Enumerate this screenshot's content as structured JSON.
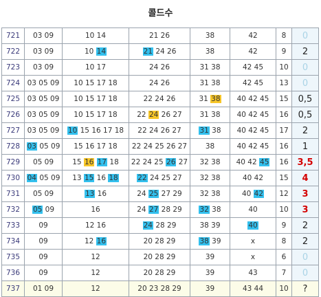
{
  "title": "콜드수",
  "rows": [
    {
      "n": "721",
      "c": [
        [
          [
            "03 09",
            ""
          ]
        ],
        [
          [
            "10 14",
            ""
          ]
        ],
        [
          [
            "21 26",
            ""
          ]
        ],
        [
          [
            "38",
            ""
          ]
        ],
        [
          [
            "42",
            ""
          ]
        ],
        [
          [
            "8",
            ""
          ]
        ]
      ],
      "r": "0",
      "rs": "pale"
    },
    {
      "n": "722",
      "c": [
        [
          [
            "03 09",
            ""
          ]
        ],
        [
          [
            "10 ",
            ""
          ],
          [
            "14",
            "b"
          ]
        ],
        [
          [
            "21",
            "b"
          ],
          [
            " 24 26",
            ""
          ]
        ],
        [
          [
            "38",
            ""
          ]
        ],
        [
          [
            "42",
            ""
          ]
        ],
        [
          [
            "9",
            ""
          ]
        ]
      ],
      "r": "2",
      "rs": ""
    },
    {
      "n": "723",
      "c": [
        [
          [
            "03 09",
            ""
          ]
        ],
        [
          [
            "10 17",
            ""
          ]
        ],
        [
          [
            "24 26",
            ""
          ]
        ],
        [
          [
            "31 38",
            ""
          ]
        ],
        [
          [
            "42 45",
            ""
          ]
        ],
        [
          [
            "10",
            ""
          ]
        ]
      ],
      "r": "0",
      "rs": "pale"
    },
    {
      "n": "724",
      "c": [
        [
          [
            "03 05 09",
            ""
          ]
        ],
        [
          [
            "10 15 17 18",
            ""
          ]
        ],
        [
          [
            "24 26",
            ""
          ]
        ],
        [
          [
            "31 38",
            ""
          ]
        ],
        [
          [
            "42 45",
            ""
          ]
        ],
        [
          [
            "13",
            ""
          ]
        ]
      ],
      "r": "0",
      "rs": "pale"
    },
    {
      "n": "725",
      "c": [
        [
          [
            "03 05 09",
            ""
          ]
        ],
        [
          [
            "10 15 17 18",
            ""
          ]
        ],
        [
          [
            "22 24 26",
            ""
          ]
        ],
        [
          [
            "31 ",
            ""
          ],
          [
            "38",
            "y"
          ]
        ],
        [
          [
            "40 42 45",
            ""
          ]
        ],
        [
          [
            "15",
            ""
          ]
        ]
      ],
      "r": "0,5",
      "rs": ""
    },
    {
      "n": "726",
      "c": [
        [
          [
            "03 05 09",
            ""
          ]
        ],
        [
          [
            "10 15 17 18",
            ""
          ]
        ],
        [
          [
            "22 ",
            ""
          ],
          [
            "24",
            "y"
          ],
          [
            " 26 27",
            ""
          ]
        ],
        [
          [
            "31 38",
            ""
          ]
        ],
        [
          [
            "40 42 45",
            ""
          ]
        ],
        [
          [
            "16",
            ""
          ]
        ]
      ],
      "r": "0,5",
      "rs": ""
    },
    {
      "n": "727",
      "c": [
        [
          [
            "03 05 09",
            ""
          ]
        ],
        [
          [
            "10",
            "b"
          ],
          [
            " 15 16 17 18",
            ""
          ]
        ],
        [
          [
            "22 24 26 27",
            ""
          ]
        ],
        [
          [
            "31",
            "b"
          ],
          [
            " 38",
            ""
          ]
        ],
        [
          [
            "40 42 45",
            ""
          ]
        ],
        [
          [
            "17",
            ""
          ]
        ]
      ],
      "r": "2",
      "rs": ""
    },
    {
      "n": "728",
      "c": [
        [
          [
            "03",
            "b"
          ],
          [
            " 05 09",
            ""
          ]
        ],
        [
          [
            "15 16 17 18",
            ""
          ]
        ],
        [
          [
            "22 24 25 26 27",
            ""
          ]
        ],
        [
          [
            "38",
            ""
          ]
        ],
        [
          [
            "40 42 45",
            ""
          ]
        ],
        [
          [
            "16",
            ""
          ]
        ]
      ],
      "r": "1",
      "rs": ""
    },
    {
      "n": "729",
      "c": [
        [
          [
            "05 09",
            ""
          ]
        ],
        [
          [
            "15 ",
            ""
          ],
          [
            "16",
            "y"
          ],
          [
            " ",
            ""
          ],
          [
            "17",
            "b"
          ],
          [
            " 18",
            ""
          ]
        ],
        [
          [
            "22 24 25 ",
            ""
          ],
          [
            "26",
            "b"
          ],
          [
            " 27",
            ""
          ]
        ],
        [
          [
            "32 38",
            ""
          ]
        ],
        [
          [
            "40 42 ",
            ""
          ],
          [
            "45",
            "b"
          ]
        ],
        [
          [
            "16",
            ""
          ]
        ]
      ],
      "r": "3,5",
      "rs": "red"
    },
    {
      "n": "730",
      "c": [
        [
          [
            "04",
            "b"
          ],
          [
            " 05 09",
            ""
          ]
        ],
        [
          [
            "13 ",
            ""
          ],
          [
            "15",
            "b"
          ],
          [
            " 16 ",
            ""
          ],
          [
            "18",
            "b"
          ]
        ],
        [
          [
            "22",
            "b"
          ],
          [
            " 24 25 27",
            ""
          ]
        ],
        [
          [
            "32 38",
            ""
          ]
        ],
        [
          [
            "40 42",
            ""
          ]
        ],
        [
          [
            "15",
            ""
          ]
        ]
      ],
      "r": "4",
      "rs": "red"
    },
    {
      "n": "731",
      "c": [
        [
          [
            "05 09",
            ""
          ]
        ],
        [
          [
            "13",
            "b"
          ],
          [
            " 16",
            ""
          ]
        ],
        [
          [
            "24 ",
            ""
          ],
          [
            "25",
            "b"
          ],
          [
            " 27 29",
            ""
          ]
        ],
        [
          [
            "32 38",
            ""
          ]
        ],
        [
          [
            "40 ",
            ""
          ],
          [
            "42",
            "b"
          ]
        ],
        [
          [
            "12",
            ""
          ]
        ]
      ],
      "r": "3",
      "rs": "red"
    },
    {
      "n": "732",
      "c": [
        [
          [
            "05",
            "b"
          ],
          [
            " 09",
            ""
          ]
        ],
        [
          [
            "16",
            ""
          ]
        ],
        [
          [
            "24 ",
            ""
          ],
          [
            "27",
            "b"
          ],
          [
            " 28 29",
            ""
          ]
        ],
        [
          [
            "32",
            "b"
          ],
          [
            " 38",
            ""
          ]
        ],
        [
          [
            "40",
            ""
          ]
        ],
        [
          [
            "10",
            ""
          ]
        ]
      ],
      "r": "3",
      "rs": "red"
    },
    {
      "n": "733",
      "c": [
        [
          [
            "09",
            ""
          ]
        ],
        [
          [
            "12 16",
            ""
          ]
        ],
        [
          [
            "24",
            "b"
          ],
          [
            " 28 29",
            ""
          ]
        ],
        [
          [
            "38 39",
            ""
          ]
        ],
        [
          [
            "40",
            "b"
          ]
        ],
        [
          [
            "9",
            ""
          ]
        ]
      ],
      "r": "2",
      "rs": ""
    },
    {
      "n": "734",
      "c": [
        [
          [
            "09",
            ""
          ]
        ],
        [
          [
            "12 ",
            ""
          ],
          [
            "16",
            "b"
          ]
        ],
        [
          [
            "20 28 29",
            ""
          ]
        ],
        [
          [
            "38",
            "b"
          ],
          [
            " 39",
            ""
          ]
        ],
        [
          [
            "x",
            ""
          ]
        ],
        [
          [
            "8",
            ""
          ]
        ]
      ],
      "r": "2",
      "rs": ""
    },
    {
      "n": "735",
      "c": [
        [
          [
            "09",
            ""
          ]
        ],
        [
          [
            "12",
            ""
          ]
        ],
        [
          [
            "20 28 29",
            ""
          ]
        ],
        [
          [
            "39",
            ""
          ]
        ],
        [
          [
            "x",
            ""
          ]
        ],
        [
          [
            "6",
            ""
          ]
        ]
      ],
      "r": "0",
      "rs": "pale"
    },
    {
      "n": "736",
      "c": [
        [
          [
            "09",
            ""
          ]
        ],
        [
          [
            "12",
            ""
          ]
        ],
        [
          [
            "20 28 29",
            ""
          ]
        ],
        [
          [
            "39",
            ""
          ]
        ],
        [
          [
            "43",
            ""
          ]
        ],
        [
          [
            "7",
            ""
          ]
        ]
      ],
      "r": "0",
      "rs": "pale"
    },
    {
      "n": "737",
      "c": [
        [
          [
            "01 09",
            ""
          ]
        ],
        [
          [
            "12",
            ""
          ]
        ],
        [
          [
            "20 23 28 29",
            ""
          ]
        ],
        [
          [
            "39",
            ""
          ]
        ],
        [
          [
            "43 44",
            ""
          ]
        ],
        [
          [
            "10",
            ""
          ]
        ]
      ],
      "r": "?",
      "rs": ""
    }
  ]
}
